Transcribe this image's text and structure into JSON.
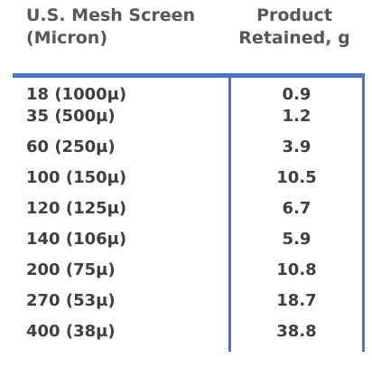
{
  "table": {
    "headers": {
      "mesh_line1": "U.S. Mesh Screen",
      "mesh_line2": "(Micron)",
      "product_line1": "Product",
      "product_line2": "Retained, g"
    },
    "rows": [
      {
        "mesh": "18 (1000µ)",
        "retained": "0.9"
      },
      {
        "mesh": "35 (500µ)",
        "retained": "1.2"
      },
      {
        "mesh": "60 (250µ)",
        "retained": "3.9"
      },
      {
        "mesh": "100 (150µ)",
        "retained": "10.5"
      },
      {
        "mesh": "120 (125µ)",
        "retained": "6.7"
      },
      {
        "mesh": "140 (106µ)",
        "retained": "5.9"
      },
      {
        "mesh": "200 (75µ)",
        "retained": "10.8"
      },
      {
        "mesh": "270 (53µ)",
        "retained": "18.7"
      },
      {
        "mesh": "400 (38µ)",
        "retained": "38.8"
      }
    ]
  },
  "colors": {
    "rule": "#4a74bf",
    "header_text": "#56585b",
    "body_text": "#3d3f42"
  }
}
